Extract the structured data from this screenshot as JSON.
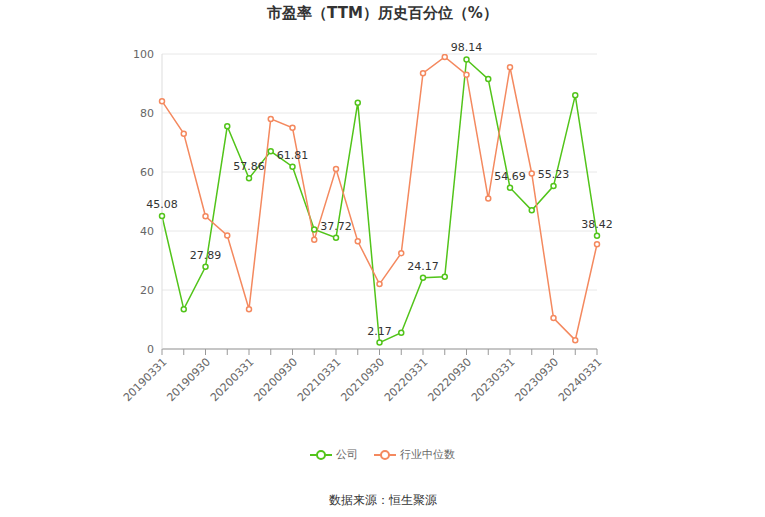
{
  "chart_data": {
    "type": "line",
    "title": "市盈率（TTM）历史百分位（%）",
    "categories": [
      "20190331",
      null,
      "20190930",
      null,
      "20200331",
      null,
      "20200930",
      null,
      "20210331",
      null,
      "20210930",
      null,
      "20220331",
      null,
      "20220930",
      null,
      "20230331",
      null,
      "20230930",
      null,
      "20240331"
    ],
    "series": [
      {
        "name": "公司",
        "color": "#52c41a",
        "marker": "circle",
        "line_style": "solid",
        "values": [
          45.08,
          13.5,
          27.89,
          75.5,
          57.86,
          67,
          61.81,
          40.5,
          37.72,
          83.5,
          2.17,
          5.5,
          24.17,
          24.5,
          98.14,
          91.5,
          54.69,
          47,
          55.23,
          86,
          38.42
        ],
        "data_labels": true,
        "value_labels": [
          "45.08",
          null,
          "27.89",
          null,
          "57.86",
          null,
          "61.81",
          null,
          "37.72",
          null,
          "2.17",
          null,
          "24.17",
          null,
          "98.14",
          null,
          "54.69",
          null,
          "55.23",
          null,
          "38.42"
        ]
      },
      {
        "name": "行业中位数",
        "color": "#f4895f",
        "marker": "circle",
        "line_style": "solid",
        "values": [
          84,
          73,
          45,
          38.5,
          13.5,
          78,
          75,
          37,
          61,
          36.5,
          22,
          32.5,
          93.5,
          99,
          93,
          51,
          95.5,
          59.5,
          10.5,
          3,
          35.5
        ]
      }
    ],
    "ylim": [
      0,
      100
    ],
    "yticks": [
      0,
      20,
      40,
      60,
      80,
      100
    ],
    "grid": true,
    "legend": "bottom",
    "annotations": [
      "数据来源：恒生聚源"
    ]
  }
}
